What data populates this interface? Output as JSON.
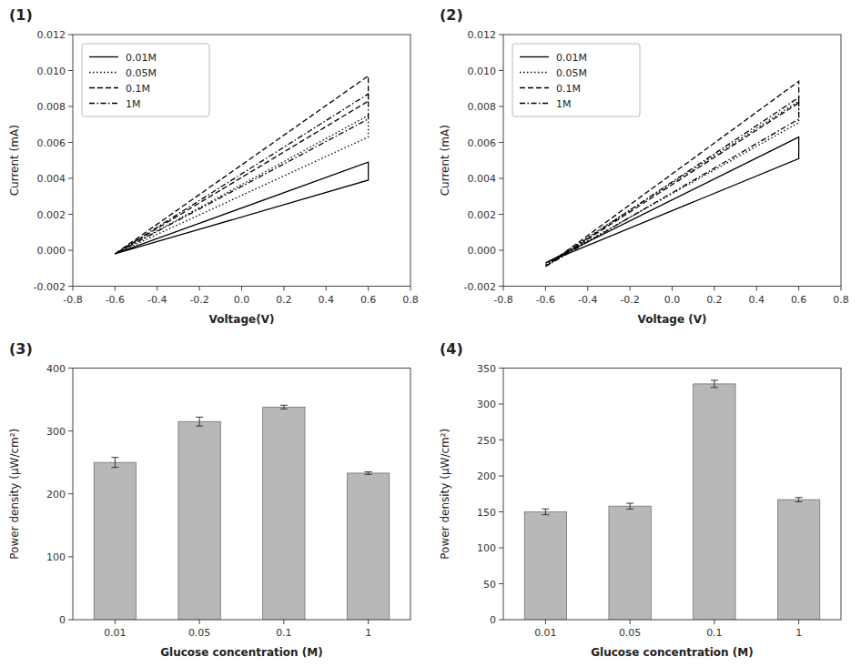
{
  "chart_data": [
    {
      "type": "line",
      "title": "(1)",
      "xlabel": "Voltage(V)",
      "ylabel": "Current (mA)",
      "x": [
        -0.6,
        0.6,
        0.6,
        -0.6
      ],
      "series": [
        {
          "name": "0.01M",
          "color": "#000000",
          "line_style": "solid",
          "values": [
            -0.0002,
            0.0049,
            0.0039,
            -0.0002
          ]
        },
        {
          "name": "0.05M",
          "color": "#000000",
          "line_style": "dotted",
          "values": [
            -0.0002,
            0.0075,
            0.0063,
            -0.0002
          ]
        },
        {
          "name": "0.1M",
          "color": "#000000",
          "line_style": "dashed",
          "values": [
            -0.0002,
            0.0097,
            0.0083,
            -0.0002
          ]
        },
        {
          "name": "1M",
          "color": "#000000",
          "line_style": "dashdot",
          "values": [
            -0.0002,
            0.0087,
            0.0073,
            -0.0002
          ]
        }
      ],
      "xlim": [
        -0.8,
        0.8
      ],
      "ylim": [
        -0.002,
        0.012
      ],
      "xticks": [
        -0.8,
        -0.6,
        -0.4,
        -0.2,
        {
          "value": 0,
          "label": "0.0"
        },
        0.2,
        0.4,
        0.6,
        0.8
      ],
      "yticks": [
        -0.002,
        {
          "value": 0,
          "label": "0.000"
        },
        0.002,
        0.004,
        0.006,
        0.008,
        {
          "value": 0.01,
          "label": "0.010"
        },
        0.012
      ],
      "legend": "upper left",
      "grid": false
    },
    {
      "type": "line",
      "title": "(2)",
      "xlabel": "Voltage (V)",
      "ylabel": "Current (mA)",
      "x": [
        -0.6,
        0.6,
        0.6,
        -0.6
      ],
      "series": [
        {
          "name": "0.01M",
          "color": "#000000",
          "line_style": "solid",
          "values": [
            -0.0007,
            0.0063,
            0.0051,
            -0.0007
          ]
        },
        {
          "name": "0.05M",
          "color": "#000000",
          "line_style": "dotted",
          "values": [
            -0.0008,
            0.0083,
            0.0071,
            -0.0008
          ]
        },
        {
          "name": "0.1M",
          "color": "#000000",
          "line_style": "dashed",
          "values": [
            -0.0009,
            0.0094,
            0.0082,
            -0.0009
          ]
        },
        {
          "name": "1M",
          "color": "#000000",
          "line_style": "dashdot",
          "values": [
            -0.0009,
            0.0085,
            0.0073,
            -0.0009
          ]
        }
      ],
      "xlim": [
        -0.8,
        0.8
      ],
      "ylim": [
        -0.002,
        0.012
      ],
      "xticks": [
        -0.8,
        -0.6,
        -0.4,
        -0.2,
        {
          "value": 0,
          "label": "0.0"
        },
        0.2,
        0.4,
        0.6,
        0.8
      ],
      "yticks": [
        -0.002,
        {
          "value": 0,
          "label": "0.000"
        },
        0.002,
        0.004,
        0.006,
        0.008,
        {
          "value": 0.01,
          "label": "0.010"
        },
        0.012
      ],
      "legend": "upper left",
      "grid": false
    },
    {
      "type": "bar",
      "title": "(3)",
      "xlabel": "Glucose concentration (M)",
      "ylabel": "Power density (μW/cm²)",
      "categories": [
        "0.01",
        "0.05",
        "0.1",
        "1"
      ],
      "values": [
        250,
        315,
        338,
        233
      ],
      "errors": [
        8,
        7,
        3,
        2
      ],
      "color": "#b8b8b8",
      "ylim": [
        0,
        400
      ],
      "yticks": [
        0,
        100,
        200,
        300,
        400
      ],
      "grid": false
    },
    {
      "type": "bar",
      "title": "(4)",
      "xlabel": "Glucose concentration (M)",
      "ylabel": "Power density (μW/cm²)",
      "categories": [
        "0.01",
        "0.05",
        "0.1",
        "1"
      ],
      "values": [
        150,
        158,
        328,
        167
      ],
      "errors": [
        4,
        4,
        5,
        3
      ],
      "color": "#b8b8b8",
      "ylim": [
        0,
        350
      ],
      "yticks": [
        0,
        50,
        100,
        150,
        200,
        250,
        300,
        350
      ],
      "grid": false
    }
  ]
}
